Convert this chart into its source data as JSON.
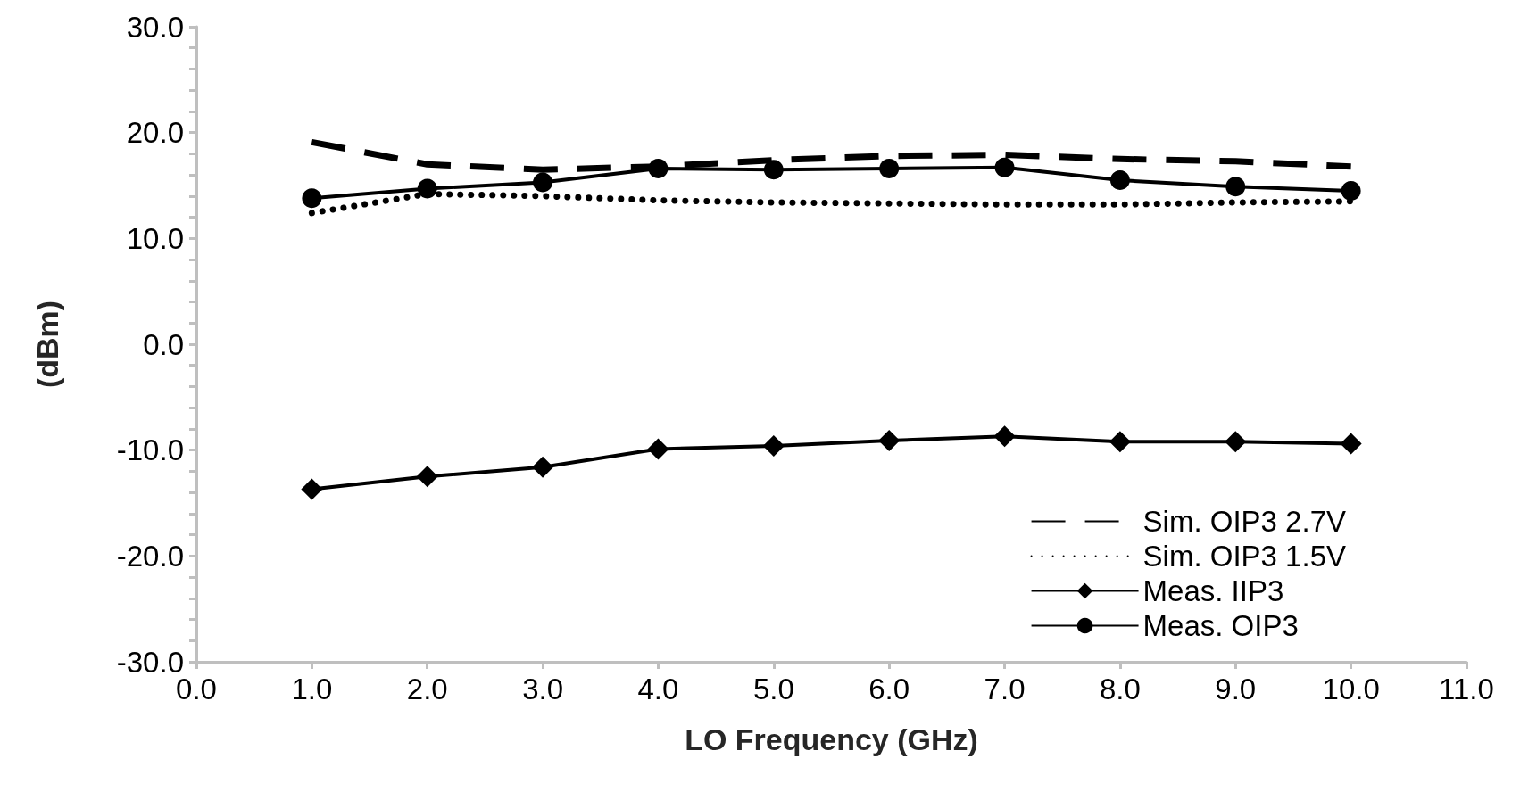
{
  "chart_data": {
    "type": "line",
    "xlabel": "LO Frequency (GHz)",
    "ylabel": "(dBm)",
    "x": [
      1,
      2,
      3,
      4,
      5,
      6,
      7,
      8,
      9,
      10
    ],
    "series": [
      {
        "name": "Sim. OIP3 2.7V",
        "color": "#000000",
        "line_style": "dashed",
        "marker": "none",
        "values": [
          19.1,
          17.0,
          16.5,
          16.8,
          17.4,
          17.8,
          17.9,
          17.5,
          17.3,
          16.8
        ]
      },
      {
        "name": "Sim. OIP3 1.5V",
        "color": "#000000",
        "line_style": "dotted",
        "marker": "none",
        "values": [
          12.4,
          14.2,
          14.0,
          13.6,
          13.4,
          13.3,
          13.2,
          13.2,
          13.4,
          13.5
        ]
      },
      {
        "name": "Meas. IIP3",
        "color": "#000000",
        "line_style": "solid",
        "marker": "diamond",
        "values": [
          -13.7,
          -12.5,
          -11.6,
          -9.9,
          -9.6,
          -9.1,
          -8.7,
          -9.2,
          -9.2,
          -9.4
        ]
      },
      {
        "name": "Meas. OIP3",
        "color": "#000000",
        "line_style": "solid",
        "marker": "circle",
        "values": [
          13.8,
          14.7,
          15.3,
          16.6,
          16.5,
          16.6,
          16.7,
          15.5,
          14.9,
          14.5
        ]
      }
    ],
    "xlim": [
      0,
      11
    ],
    "xticks": [
      {
        "value": 0,
        "label": "0.0"
      },
      {
        "value": 1,
        "label": "1.0"
      },
      {
        "value": 2,
        "label": "2.0"
      },
      {
        "value": 3,
        "label": "3.0"
      },
      {
        "value": 4,
        "label": "4.0"
      },
      {
        "value": 5,
        "label": "5.0"
      },
      {
        "value": 6,
        "label": "6.0"
      },
      {
        "value": 7,
        "label": "7.0"
      },
      {
        "value": 8,
        "label": "8.0"
      },
      {
        "value": 9,
        "label": "9.0"
      },
      {
        "value": 10,
        "label": "10.0"
      },
      {
        "value": 11,
        "label": "11.0"
      }
    ],
    "ylim": [
      -30,
      30
    ],
    "yticks": [
      {
        "value": -30,
        "label": "-30.0"
      },
      {
        "value": -28,
        "label": null
      },
      {
        "value": -26,
        "label": null
      },
      {
        "value": -24,
        "label": null
      },
      {
        "value": -22,
        "label": null
      },
      {
        "value": -20,
        "label": "-20.0"
      },
      {
        "value": -18,
        "label": null
      },
      {
        "value": -16,
        "label": null
      },
      {
        "value": -14,
        "label": null
      },
      {
        "value": -12,
        "label": null
      },
      {
        "value": -10,
        "label": "-10.0"
      },
      {
        "value": -8,
        "label": null
      },
      {
        "value": -6,
        "label": null
      },
      {
        "value": -4,
        "label": null
      },
      {
        "value": -2,
        "label": null
      },
      {
        "value": 0,
        "label": "0.0"
      },
      {
        "value": 2,
        "label": null
      },
      {
        "value": 4,
        "label": null
      },
      {
        "value": 6,
        "label": null
      },
      {
        "value": 8,
        "label": null
      },
      {
        "value": 10,
        "label": "10.0"
      },
      {
        "value": 12,
        "label": null
      },
      {
        "value": 14,
        "label": null
      },
      {
        "value": 16,
        "label": null
      },
      {
        "value": 18,
        "label": null
      },
      {
        "value": 20,
        "label": "20.0"
      },
      {
        "value": 22,
        "label": null
      },
      {
        "value": 24,
        "label": null
      },
      {
        "value": 26,
        "label": null
      },
      {
        "value": 28,
        "label": null
      },
      {
        "value": 30,
        "label": "30.0"
      }
    ],
    "grid": false,
    "legend": "bottom right"
  }
}
